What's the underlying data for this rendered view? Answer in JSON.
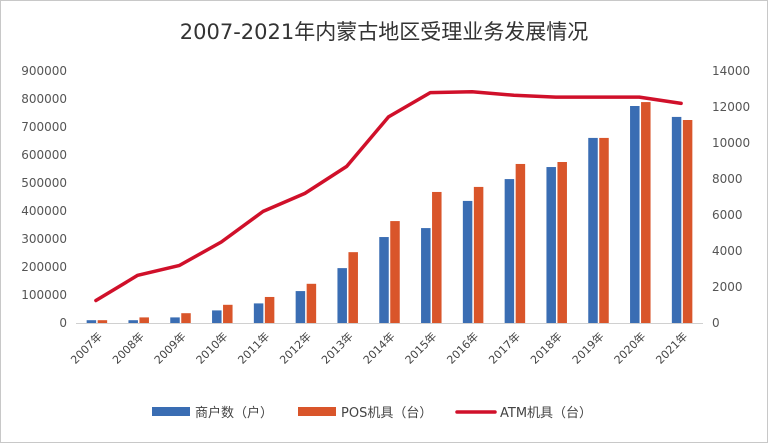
{
  "chart_data": {
    "type": "bar",
    "title": "2007-2021年内蒙古地区受理业务发展情况",
    "xlabel": "",
    "ylabel": "",
    "y2label": "",
    "categories": [
      "2007年",
      "2008年",
      "2009年",
      "2010年",
      "2011年",
      "2012年",
      "2013年",
      "2014年",
      "2015年",
      "2016年",
      "2017年",
      "2018年",
      "2019年",
      "2020年",
      "2021年"
    ],
    "ylim": [
      0,
      900000
    ],
    "y_ticks": [
      "0",
      "100000",
      "200000",
      "300000",
      "400000",
      "500000",
      "600000",
      "700000",
      "800000",
      "900000"
    ],
    "y2lim": [
      0,
      14000
    ],
    "y2_ticks": [
      "0",
      "2000",
      "4000",
      "6000",
      "8000",
      "10000",
      "12000",
      "14000"
    ],
    "grid": false,
    "legend_position": "bottom",
    "series": [
      {
        "name": "商户数（户）",
        "type": "bar",
        "axis": "left",
        "color": "#3A6DB3",
        "values": [
          10000,
          10000,
          20000,
          45000,
          70000,
          114000,
          196000,
          307000,
          339000,
          436000,
          514000,
          557000,
          661000,
          775000,
          736000
        ]
      },
      {
        "name": "POS机具（台）",
        "type": "bar",
        "axis": "left",
        "color": "#D9552A",
        "values": [
          10000,
          20000,
          35000,
          65000,
          93000,
          140000,
          253000,
          364000,
          468000,
          486000,
          568000,
          575000,
          661000,
          789000,
          725000
        ]
      },
      {
        "name": "ATM机具（台）",
        "type": "line",
        "axis": "right",
        "color": "#D0102A",
        "values": [
          1250,
          2650,
          3200,
          4500,
          6200,
          7200,
          8700,
          11450,
          12800,
          12850,
          12650,
          12550,
          12550,
          12550,
          12200
        ]
      }
    ]
  }
}
